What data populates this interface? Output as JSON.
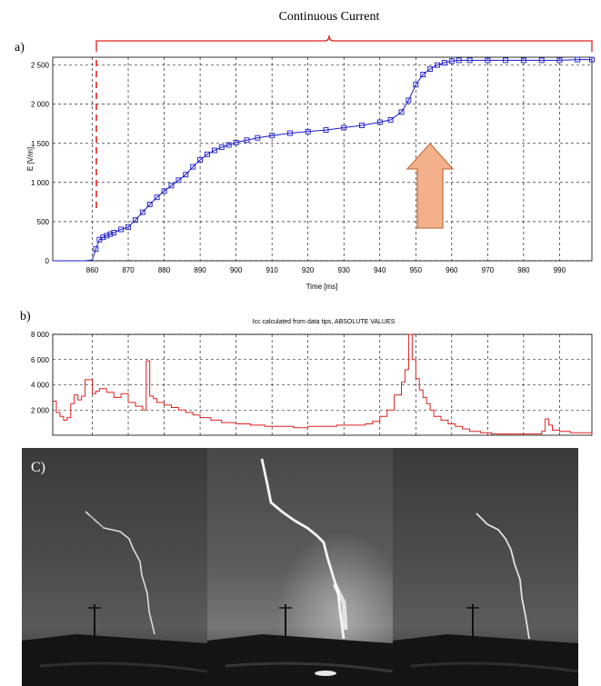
{
  "annotations": {
    "bracket_label": "Continuous Current",
    "panel_a": "a)",
    "panel_b": "b)",
    "panel_c": "C)"
  },
  "colors": {
    "series_a": "#1a1acc",
    "series_b": "#e02020",
    "bracket": "#e02020",
    "arrow": "#f3b08a"
  },
  "chart_data": [
    {
      "type": "line",
      "title": "",
      "xlabel": "Time [ms]",
      "ylabel": "E [V/m]",
      "xlim": [
        849,
        999
      ],
      "ylim": [
        0,
        2600
      ],
      "xticks": [
        860,
        870,
        880,
        890,
        900,
        910,
        920,
        930,
        940,
        950,
        960,
        970,
        980,
        990
      ],
      "yticks": [
        0,
        500,
        1000,
        1500,
        2000,
        2500
      ],
      "ytick_labels": [
        "0",
        "500",
        "1 000",
        "1 500",
        "2 000",
        "2 500"
      ],
      "grid": true,
      "marker": "square",
      "x": [
        849,
        858,
        860,
        861,
        862,
        863,
        864,
        865,
        866,
        868,
        870,
        872,
        874,
        876,
        878,
        880,
        882,
        884,
        886,
        888,
        890,
        892,
        894,
        896,
        898,
        900,
        903,
        906,
        910,
        915,
        920,
        925,
        930,
        935,
        940,
        943,
        946,
        948,
        950,
        952,
        954,
        956,
        958,
        960,
        962,
        965,
        970,
        975,
        980,
        985,
        990,
        995,
        999
      ],
      "y": [
        0,
        0,
        10,
        150,
        270,
        300,
        320,
        340,
        360,
        400,
        430,
        520,
        620,
        720,
        810,
        890,
        960,
        1030,
        1100,
        1200,
        1290,
        1360,
        1410,
        1450,
        1480,
        1510,
        1540,
        1570,
        1600,
        1630,
        1650,
        1670,
        1700,
        1730,
        1770,
        1800,
        1900,
        2050,
        2250,
        2380,
        2450,
        2500,
        2530,
        2550,
        2560,
        2560,
        2560,
        2560,
        2560,
        2560,
        2560,
        2570,
        2570
      ]
    },
    {
      "type": "line",
      "title": "Icc calculated from data tips, ABSOLUTE VALUES",
      "xlabel": "",
      "ylabel": "",
      "xlim": [
        849,
        999
      ],
      "ylim": [
        0,
        8000
      ],
      "yticks": [
        2000,
        4000,
        6000,
        8000
      ],
      "ytick_labels": [
        "2 000",
        "4 000",
        "6 000",
        "8 000"
      ],
      "grid": true,
      "step": true,
      "x": [
        849,
        850,
        851,
        852,
        853,
        854,
        855,
        856,
        857,
        858,
        860,
        861,
        862,
        864,
        866,
        868,
        870,
        872,
        874,
        875,
        876,
        877,
        878,
        880,
        882,
        884,
        886,
        888,
        890,
        893,
        896,
        900,
        904,
        908,
        912,
        916,
        920,
        924,
        928,
        932,
        936,
        938,
        940,
        942,
        944,
        946,
        947,
        948,
        949,
        950,
        951,
        952,
        953,
        954,
        955,
        957,
        959,
        961,
        963,
        965,
        968,
        971,
        974,
        977,
        980,
        983,
        985,
        986,
        987,
        988,
        990,
        993,
        996,
        999
      ],
      "y": [
        2700,
        1800,
        1500,
        1200,
        1400,
        2500,
        3200,
        2800,
        3100,
        4400,
        3300,
        3500,
        3700,
        3400,
        3000,
        3300,
        2600,
        2300,
        2000,
        5900,
        3100,
        2900,
        2600,
        2400,
        2200,
        2000,
        1800,
        1600,
        1400,
        1200,
        1000,
        900,
        800,
        700,
        700,
        600,
        700,
        700,
        800,
        800,
        900,
        1100,
        1500,
        2000,
        3200,
        4200,
        5200,
        8000,
        6000,
        4500,
        3600,
        3000,
        2500,
        2000,
        1500,
        1200,
        900,
        700,
        500,
        300,
        200,
        100,
        100,
        100,
        100,
        100,
        300,
        1300,
        800,
        400,
        300,
        200,
        200,
        100
      ]
    }
  ]
}
